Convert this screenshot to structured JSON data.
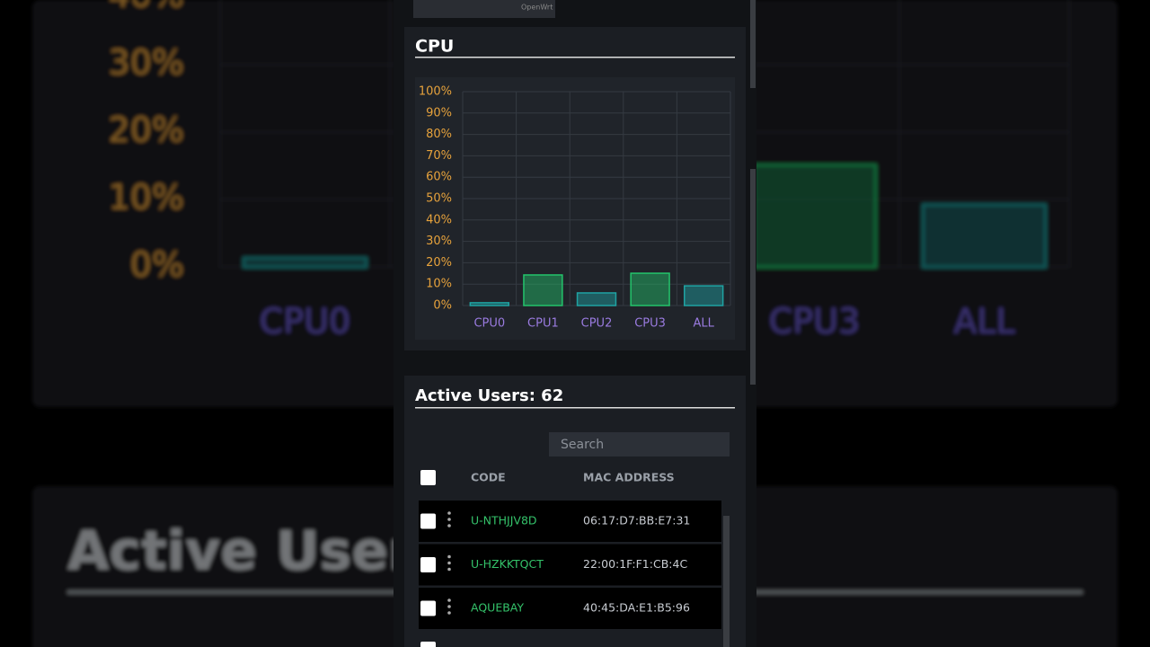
{
  "header": {
    "brand": "OpenWrt"
  },
  "chart_data": {
    "type": "bar",
    "title": "CPU",
    "categories": [
      "CPU0",
      "CPU1",
      "CPU2",
      "CPU3",
      "ALL"
    ],
    "values": [
      1.3,
      14.3,
      5.9,
      15.1,
      9.2
    ],
    "colors": [
      "#1fa3a3",
      "#23c46b",
      "#1fa3a3",
      "#23c46b",
      "#1fa3a3"
    ],
    "ylim": [
      0,
      100
    ],
    "yticks": [
      {
        "value": 0,
        "label": "0%"
      },
      {
        "value": 10,
        "label": "10%"
      },
      {
        "value": 20,
        "label": "20%"
      },
      {
        "value": 30,
        "label": "30%"
      },
      {
        "value": 40,
        "label": "40%"
      },
      {
        "value": 50,
        "label": "50%"
      },
      {
        "value": 60,
        "label": "60%"
      },
      {
        "value": 70,
        "label": "70%"
      },
      {
        "value": 80,
        "label": "80%"
      },
      {
        "value": 90,
        "label": "90%"
      },
      {
        "value": 100,
        "label": "100%"
      }
    ],
    "grid": true
  },
  "users": {
    "title": "Active Users: 62",
    "search_placeholder": "Search",
    "columns": [
      "CODE",
      "MAC ADDRESS"
    ],
    "rows": [
      [
        "U-NTHJJV8D",
        "06:17:D7:BB:E7:31"
      ],
      [
        "U-HZKKTQCT",
        "22:00:1F:F1:CB:4C"
      ],
      [
        "AQUEBAY",
        "40:45:DA:E1:B5:96"
      ]
    ]
  }
}
